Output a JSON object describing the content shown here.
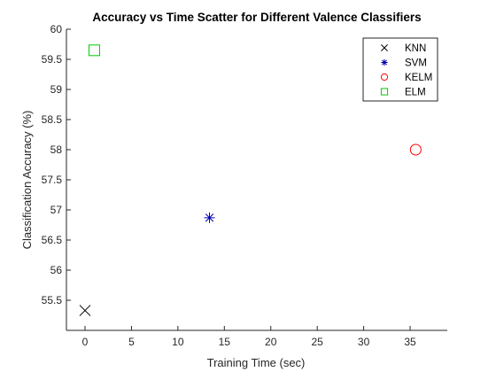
{
  "chart_data": {
    "type": "scatter",
    "title": "Accuracy vs Time Scatter for Different Valence Classifiers",
    "xlabel": "Training Time (sec)",
    "ylabel": "Classification Accuracy (%)",
    "xlim": [
      -2,
      39
    ],
    "ylim": [
      55.0,
      60.0
    ],
    "xticks": [
      0,
      5,
      10,
      15,
      20,
      25,
      30,
      35
    ],
    "yticks": [
      55.5,
      56,
      56.5,
      57,
      57.5,
      58,
      58.5,
      59,
      59.5,
      60
    ],
    "grid": false,
    "legend_position": "top-right",
    "series": [
      {
        "name": "KNN",
        "marker": "x",
        "color": "#000000",
        "x": 0.0,
        "y": 55.33
      },
      {
        "name": "SVM",
        "marker": "star",
        "color": "#0000b3",
        "x": 13.4,
        "y": 56.87
      },
      {
        "name": "KELM",
        "marker": "circle",
        "color": "#ff0000",
        "x": 35.6,
        "y": 58.0
      },
      {
        "name": "ELM",
        "marker": "square",
        "color": "#00cc00",
        "x": 1.0,
        "y": 59.65
      }
    ]
  }
}
